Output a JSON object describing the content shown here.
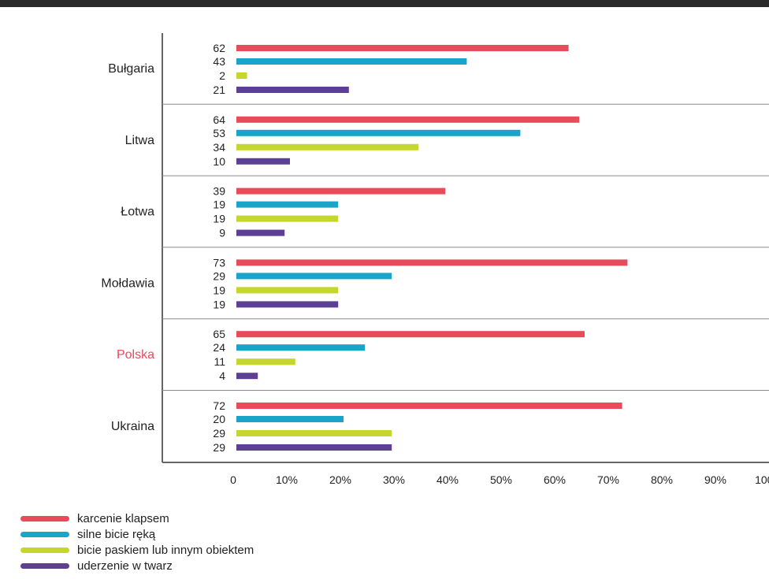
{
  "chart_data": {
    "type": "bar",
    "orientation": "horizontal",
    "categories": [
      "Bułgaria",
      "Litwa",
      "Łotwa",
      "Mołdawia",
      "Polska",
      "Ukraina"
    ],
    "highlight_category": "Polska",
    "series": [
      {
        "name": "karcenie klapsem",
        "color": "#e84b5a",
        "values": [
          62,
          64,
          39,
          73,
          65,
          72
        ]
      },
      {
        "name": "silne bicie ręką",
        "color": "#1aa5c8",
        "values": [
          43,
          53,
          19,
          29,
          24,
          20
        ]
      },
      {
        "name": "bicie paskiem lub innym obiektem",
        "color": "#c5d62c",
        "values": [
          2,
          34,
          19,
          19,
          11,
          29
        ]
      },
      {
        "name": "uderzenie w twarz",
        "color": "#5d3f94",
        "values": [
          21,
          10,
          9,
          19,
          4,
          29
        ]
      }
    ],
    "xlim": [
      0,
      100
    ],
    "x_ticks": [
      "0",
      "10%",
      "20%",
      "30%",
      "40%",
      "50%",
      "60%",
      "70%",
      "80%",
      "90%",
      "100%"
    ],
    "legend_position": "bottom-left",
    "colors": {
      "highlight": "#e84b5a",
      "axis": "#666666",
      "topbar": "#2b2b2b"
    }
  }
}
